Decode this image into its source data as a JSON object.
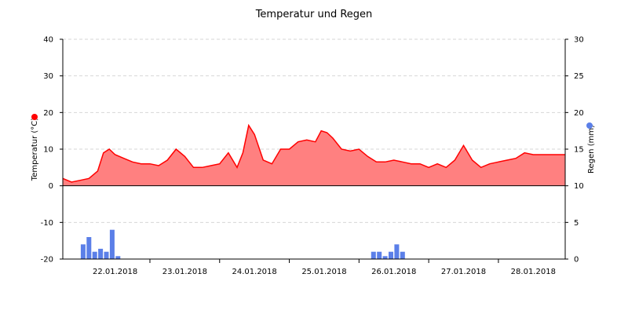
{
  "chart_data": {
    "type": "line",
    "title": "Temperatur und Regen",
    "left_axis": {
      "label": "Temperatur (°C)",
      "range": [
        -20,
        40
      ],
      "ticks": [
        40,
        30,
        20,
        10,
        0,
        -10,
        -20
      ],
      "tick_labels": [
        "40",
        "30",
        "20",
        "10",
        "0",
        "-10",
        "-20"
      ]
    },
    "right_axis": {
      "label": "Regen (mm)",
      "range": [
        0,
        30
      ],
      "ticks": [
        30,
        25,
        20,
        15,
        10,
        5,
        0
      ],
      "tick_labels": [
        "30",
        "25",
        "20",
        "15",
        "10",
        "5",
        "0"
      ]
    },
    "x_axis": {
      "range": [
        "2018-01-21T18:00",
        "2018-01-28T23:00"
      ],
      "date_labels": [
        {
          "label": "22.01.2018",
          "at": "2018-01-22T12:00"
        },
        {
          "label": "23.01.2018",
          "at": "2018-01-23T12:00"
        },
        {
          "label": "24.01.2018",
          "at": "2018-01-24T12:00"
        },
        {
          "label": "25.01.2018",
          "at": "2018-01-25T12:00"
        },
        {
          "label": "26.01.2018",
          "at": "2018-01-26T12:00"
        },
        {
          "label": "27.01.2018",
          "at": "2018-01-27T12:00"
        },
        {
          "label": "28.01.2018",
          "at": "2018-01-28T12:00"
        }
      ],
      "ticks": [
        "2018-01-23T00:00",
        "2018-01-24T00:00",
        "2018-01-25T00:00",
        "2018-01-26T00:00",
        "2018-01-27T00:00",
        "2018-01-28T00:00"
      ]
    },
    "grid": true,
    "series": [
      {
        "name": "Temperatur (°C)",
        "type": "area",
        "axis": "left",
        "color": "#ff0000",
        "fill": "#ff8080",
        "x": [
          "2018-01-21T18:00",
          "2018-01-21T21:00",
          "2018-01-22T00:00",
          "2018-01-22T03:00",
          "2018-01-22T06:00",
          "2018-01-22T08:00",
          "2018-01-22T10:00",
          "2018-01-22T12:00",
          "2018-01-22T15:00",
          "2018-01-22T18:00",
          "2018-01-22T21:00",
          "2018-01-23T00:00",
          "2018-01-23T03:00",
          "2018-01-23T06:00",
          "2018-01-23T09:00",
          "2018-01-23T12:00",
          "2018-01-23T15:00",
          "2018-01-23T18:00",
          "2018-01-23T21:00",
          "2018-01-24T00:00",
          "2018-01-24T03:00",
          "2018-01-24T06:00",
          "2018-01-24T08:00",
          "2018-01-24T10:00",
          "2018-01-24T12:00",
          "2018-01-24T15:00",
          "2018-01-24T18:00",
          "2018-01-24T21:00",
          "2018-01-25T00:00",
          "2018-01-25T03:00",
          "2018-01-25T06:00",
          "2018-01-25T09:00",
          "2018-01-25T11:00",
          "2018-01-25T13:00",
          "2018-01-25T15:00",
          "2018-01-25T18:00",
          "2018-01-25T21:00",
          "2018-01-26T00:00",
          "2018-01-26T03:00",
          "2018-01-26T06:00",
          "2018-01-26T09:00",
          "2018-01-26T12:00",
          "2018-01-26T15:00",
          "2018-01-26T18:00",
          "2018-01-26T21:00",
          "2018-01-27T00:00",
          "2018-01-27T03:00",
          "2018-01-27T06:00",
          "2018-01-27T09:00",
          "2018-01-27T12:00",
          "2018-01-27T15:00",
          "2018-01-27T18:00",
          "2018-01-27T21:00",
          "2018-01-28T00:00",
          "2018-01-28T03:00",
          "2018-01-28T06:00",
          "2018-01-28T09:00",
          "2018-01-28T12:00",
          "2018-01-28T15:00",
          "2018-01-28T18:00",
          "2018-01-28T21:00",
          "2018-01-28T23:00"
        ],
        "values": [
          2,
          1,
          1.5,
          2,
          4,
          9,
          10,
          8.5,
          7.5,
          6.5,
          6,
          6,
          5.5,
          7,
          10,
          8,
          5,
          5,
          5.5,
          6,
          9,
          5,
          9,
          16.5,
          14,
          7,
          6,
          10,
          10,
          12,
          12.5,
          12,
          15,
          14.5,
          13,
          10,
          9.5,
          10,
          8,
          6.5,
          6.5,
          7,
          6.5,
          6,
          6,
          5,
          6,
          5,
          7,
          11,
          7,
          5,
          6,
          6.5,
          7,
          7.5,
          9,
          8.5,
          8.5,
          8.5,
          8.5,
          8.5
        ]
      },
      {
        "name": "Regen (mm)",
        "type": "bar",
        "axis": "right",
        "color": "#5b7fe8",
        "x": [
          "2018-01-22T01:00",
          "2018-01-22T03:00",
          "2018-01-22T05:00",
          "2018-01-22T07:00",
          "2018-01-22T09:00",
          "2018-01-22T11:00",
          "2018-01-22T13:00",
          "2018-01-26T05:00",
          "2018-01-26T07:00",
          "2018-01-26T09:00",
          "2018-01-26T11:00",
          "2018-01-26T13:00",
          "2018-01-26T15:00"
        ],
        "values": [
          2,
          3,
          1,
          1.4,
          1,
          4,
          0.4,
          1,
          1,
          0.4,
          1,
          2,
          1
        ]
      }
    ]
  }
}
